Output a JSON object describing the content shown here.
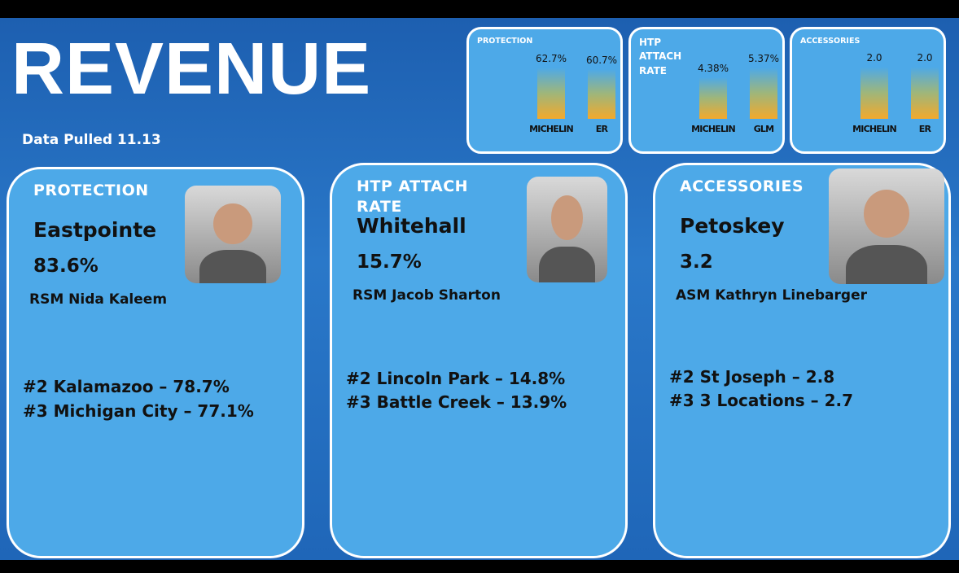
{
  "header": {
    "title": "REVENUE",
    "subtitle": "Data Pulled 11.13"
  },
  "charts": [
    {
      "type": "bar",
      "title": "PROTECTION",
      "categories": [
        "MICHELIN",
        "ER"
      ],
      "values": [
        62.7,
        60.7
      ],
      "value_labels": [
        "62.7%",
        "60.7%"
      ],
      "ylim": [
        0,
        70
      ]
    },
    {
      "type": "bar",
      "title": "HTP ATTACH RATE",
      "categories": [
        "MICHELIN",
        "GLM"
      ],
      "values": [
        4.38,
        5.37
      ],
      "value_labels": [
        "4.38%",
        "5.37%"
      ],
      "ylim": [
        0,
        6
      ]
    },
    {
      "type": "bar",
      "title": "ACCESSORIES",
      "categories": [
        "MICHELIN",
        "ER"
      ],
      "values": [
        2.0,
        2.0
      ],
      "value_labels": [
        "2.0",
        "2.0"
      ],
      "ylim": [
        0,
        2.2
      ]
    }
  ],
  "cards": [
    {
      "category": "PROTECTION",
      "location": "Eastpointe",
      "value": "83.6%",
      "manager": "RSM Nida Kaleem",
      "runners_up": [
        "#2 Kalamazoo – 78.7%",
        "#3 Michigan City – 77.1%"
      ]
    },
    {
      "category": "HTP ATTACH RATE",
      "location": "Whitehall",
      "value": "15.7%",
      "manager": "RSM Jacob Sharton",
      "runners_up": [
        "#2 Lincoln Park – 14.8%",
        "#3 Battle Creek – 13.9%"
      ]
    },
    {
      "category": "ACCESSORIES",
      "location": "Petoskey",
      "value": "3.2",
      "manager": "ASM Kathryn Linebarger",
      "runners_up": [
        "#2 St Joseph – 2.8",
        "#3 3 Locations – 2.7"
      ]
    }
  ]
}
